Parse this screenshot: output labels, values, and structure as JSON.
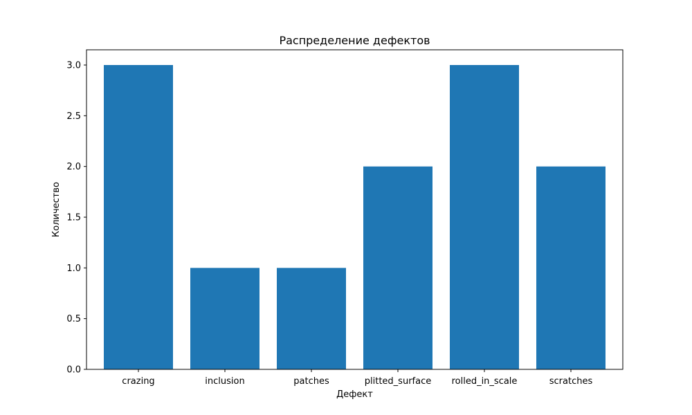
{
  "chart_data": {
    "type": "bar",
    "title": "Распределение дефектов",
    "xlabel": "Дефект",
    "ylabel": "Количество",
    "categories": [
      "crazing",
      "inclusion",
      "patches",
      "plitted_surface",
      "rolled_in_scale",
      "scratches"
    ],
    "values": [
      3,
      1,
      1,
      2,
      3,
      2
    ],
    "ylim": [
      0,
      3.15
    ],
    "yticks": [
      "0.0",
      "0.5",
      "1.0",
      "1.5",
      "2.0",
      "2.5",
      "3.0"
    ],
    "bar_color": "#1f77b4",
    "grid": false,
    "legend": "none"
  }
}
